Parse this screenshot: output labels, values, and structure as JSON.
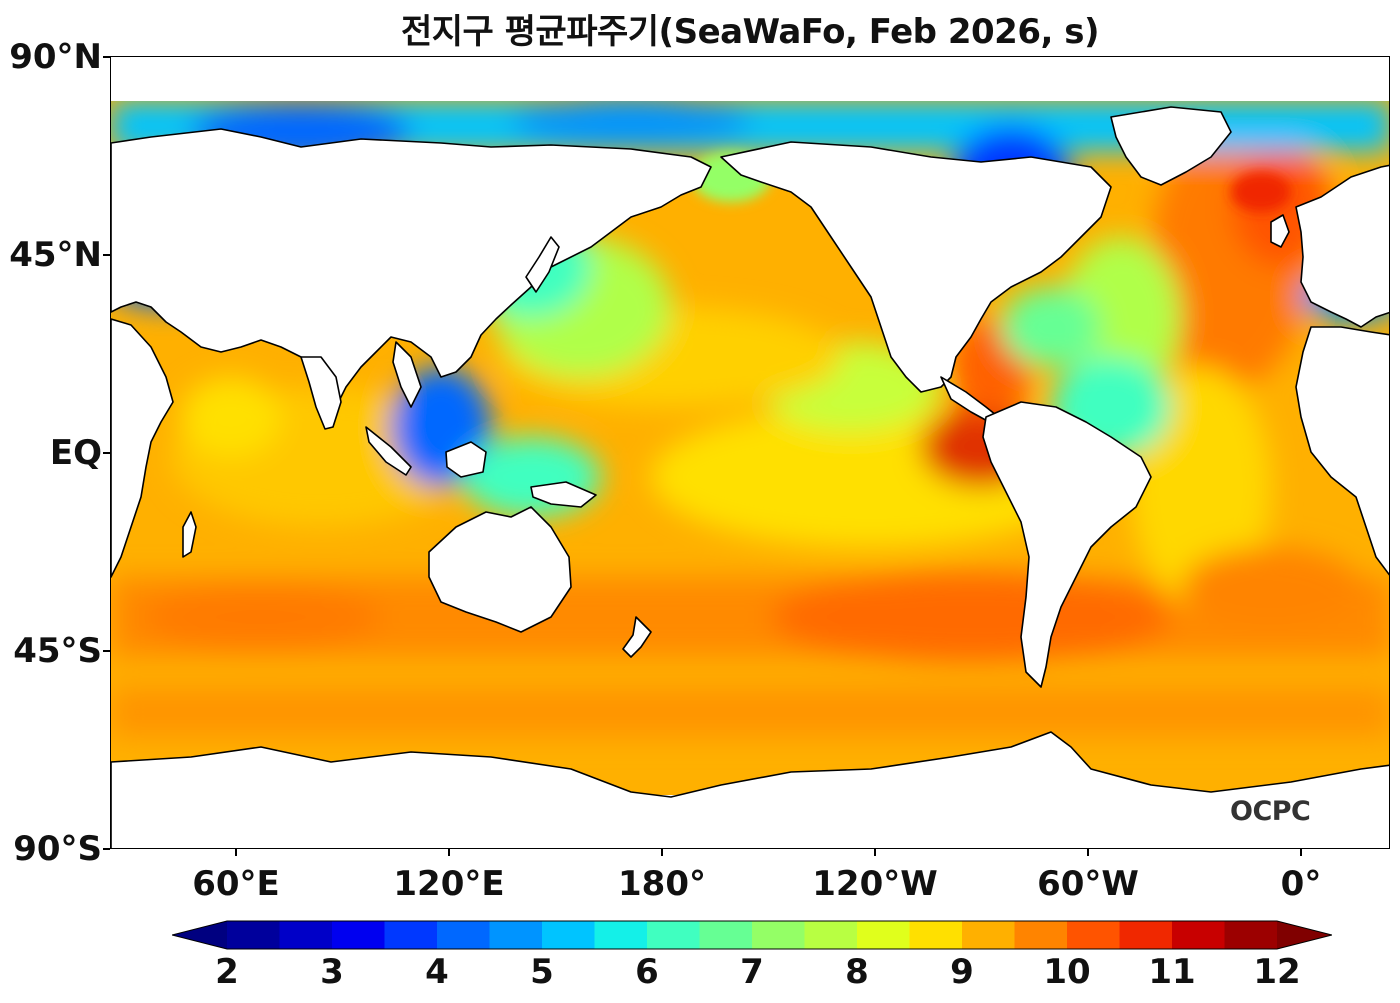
{
  "title": "전지구 평균파주기(SeaWaFo, Feb 2026, s)",
  "watermark": "OCPC",
  "map": {
    "projection": "equirectangular",
    "lon_range": [
      30,
      390
    ],
    "lat_range": [
      -90,
      90
    ],
    "data_lat_coverage": [
      -78,
      80
    ],
    "variable": "mean wave period",
    "unit": "s",
    "lat_ticks": [
      "90°N",
      "45°N",
      "EQ",
      "45°S",
      "90°S"
    ],
    "lon_ticks": [
      "60°E",
      "120°E",
      "180°",
      "120°W",
      "60°W",
      "0°"
    ]
  },
  "colorbar": {
    "min": 2,
    "max": 12,
    "step": 0.5,
    "extend": "both",
    "tick_labels": [
      "2",
      "3",
      "4",
      "5",
      "6",
      "7",
      "8",
      "9",
      "10",
      "11",
      "12"
    ],
    "colors": [
      "#000080",
      "#00009c",
      "#0000c8",
      "#0000f0",
      "#0038ff",
      "#0068ff",
      "#0094ff",
      "#00c4ff",
      "#14f0e8",
      "#40ffc0",
      "#66ff94",
      "#94ff66",
      "#b8ff42",
      "#e0ff1c",
      "#ffe000",
      "#ffb000",
      "#ff8400",
      "#ff5400",
      "#f02800",
      "#c80000",
      "#9c0000",
      "#800000"
    ]
  }
}
